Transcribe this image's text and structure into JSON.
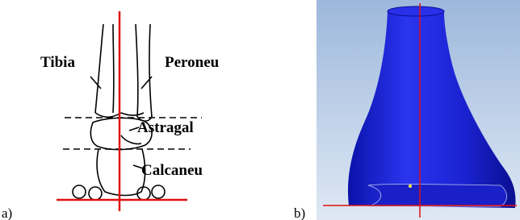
{
  "panels": [
    {
      "label": "a)",
      "annotations": [
        "Tibia",
        "Peroneu",
        "Astragal",
        "Calcaneu"
      ]
    },
    {
      "label": "b)"
    }
  ]
}
